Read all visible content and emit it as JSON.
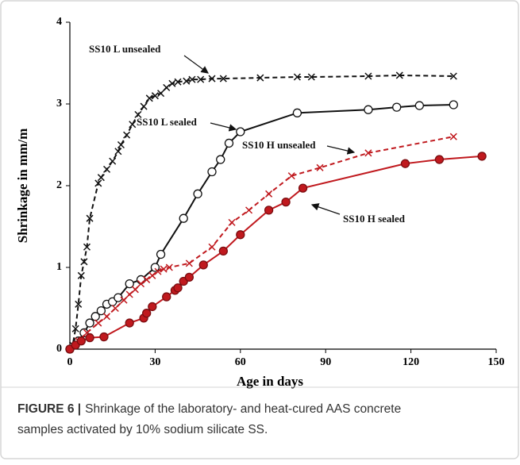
{
  "chart_data": {
    "type": "line",
    "xlabel": "Age in days",
    "ylabel": "Shrinkage in mm/m",
    "xlim": [
      0,
      150
    ],
    "xticks": [
      0,
      30,
      60,
      90,
      120,
      150
    ],
    "ylim": [
      0,
      4
    ],
    "yticks": [
      0,
      1,
      2,
      3,
      4
    ],
    "series": [
      {
        "name": "SS10 L unsealed",
        "color": "#111111",
        "dash": true,
        "marker": "x",
        "x": [
          0,
          1,
          2,
          3,
          4,
          5,
          6,
          7,
          10,
          11,
          13,
          15,
          17,
          18,
          20,
          22,
          24,
          26,
          28,
          30,
          32,
          34,
          36,
          38,
          41,
          43,
          46,
          50,
          54,
          67,
          80,
          85,
          105,
          116,
          135
        ],
        "values": [
          0,
          0.05,
          0.25,
          0.55,
          0.9,
          1.07,
          1.25,
          1.6,
          2.03,
          2.1,
          2.2,
          2.3,
          2.42,
          2.5,
          2.62,
          2.75,
          2.87,
          2.97,
          3.07,
          3.1,
          3.13,
          3.2,
          3.25,
          3.27,
          3.28,
          3.3,
          3.3,
          3.31,
          3.31,
          3.32,
          3.33,
          3.33,
          3.34,
          3.35,
          3.34
        ]
      },
      {
        "name": "SS10 L sealed",
        "color": "#111111",
        "dash": false,
        "marker": "open-circle",
        "x": [
          0,
          3,
          5,
          7,
          9,
          11,
          13,
          15,
          17,
          21,
          25,
          30,
          32,
          40,
          45,
          50,
          53,
          56,
          60,
          80,
          105,
          115,
          123,
          135
        ],
        "values": [
          0,
          0.1,
          0.2,
          0.32,
          0.4,
          0.47,
          0.55,
          0.58,
          0.63,
          0.8,
          0.85,
          1.0,
          1.16,
          1.6,
          1.9,
          2.17,
          2.32,
          2.52,
          2.66,
          2.89,
          2.93,
          2.96,
          2.98,
          2.99
        ]
      },
      {
        "name": "SS10 H unsealed",
        "color": "#c0191e",
        "dash": true,
        "marker": "x",
        "x": [
          0,
          3,
          6,
          10,
          13,
          16,
          19,
          21,
          23,
          25,
          27,
          29,
          31,
          33,
          35,
          42,
          50,
          57,
          63,
          70,
          78,
          88,
          105,
          135
        ],
        "values": [
          0,
          0.1,
          0.2,
          0.32,
          0.4,
          0.5,
          0.6,
          0.67,
          0.73,
          0.8,
          0.85,
          0.9,
          0.95,
          0.98,
          1.0,
          1.05,
          1.25,
          1.55,
          1.7,
          1.9,
          2.12,
          2.22,
          2.4,
          2.6
        ]
      },
      {
        "name": "SS10 H sealed",
        "color": "#c0191e",
        "dash": false,
        "marker": "filled-circle",
        "x": [
          0,
          2,
          4,
          7,
          12,
          21,
          26,
          27,
          29,
          34,
          37,
          38,
          40,
          42,
          47,
          54,
          60,
          70,
          76,
          82,
          118,
          130,
          145
        ],
        "values": [
          0,
          0.05,
          0.1,
          0.14,
          0.15,
          0.32,
          0.38,
          0.44,
          0.52,
          0.64,
          0.72,
          0.75,
          0.83,
          0.88,
          1.03,
          1.2,
          1.4,
          1.7,
          1.8,
          1.97,
          2.27,
          2.32,
          2.36
        ]
      }
    ]
  },
  "caption": {
    "label": "FIGURE 6 |",
    "text": "Shrinkage of the laboratory- and heat-cured AAS concrete samples activated by 10% sodium silicate SS."
  }
}
